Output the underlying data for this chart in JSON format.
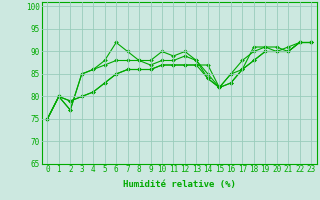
{
  "xlabel": "Humidité relative (%)",
  "xlim": [
    -0.5,
    23.5
  ],
  "ylim": [
    65,
    101
  ],
  "yticks": [
    65,
    70,
    75,
    80,
    85,
    90,
    95,
    100
  ],
  "xticks": [
    0,
    1,
    2,
    3,
    4,
    5,
    6,
    7,
    8,
    9,
    10,
    11,
    12,
    13,
    14,
    15,
    16,
    17,
    18,
    19,
    20,
    21,
    22,
    23
  ],
  "bg_color": "#cce8e0",
  "line_color": "#00aa00",
  "grid_color": "#99ccbb",
  "lines": [
    [
      75,
      80,
      77,
      85,
      86,
      88,
      92,
      90,
      88,
      88,
      90,
      89,
      90,
      88,
      84,
      82,
      85,
      86,
      91,
      91,
      91,
      90,
      92,
      92
    ],
    [
      75,
      80,
      77,
      85,
      86,
      87,
      88,
      88,
      88,
      87,
      88,
      88,
      89,
      88,
      85,
      82,
      85,
      88,
      90,
      91,
      90,
      91,
      92,
      92
    ],
    [
      75,
      80,
      79,
      80,
      81,
      83,
      85,
      86,
      86,
      86,
      87,
      87,
      87,
      87,
      87,
      82,
      83,
      86,
      88,
      90,
      90,
      90,
      92,
      92
    ],
    [
      75,
      80,
      79,
      80,
      81,
      83,
      85,
      86,
      86,
      86,
      87,
      87,
      87,
      87,
      84,
      82,
      83,
      86,
      88,
      90,
      90,
      90,
      92,
      92
    ]
  ],
  "markersize": 2.0,
  "linewidth": 0.8,
  "xlabel_fontsize": 6.5,
  "tick_fontsize": 5.5
}
